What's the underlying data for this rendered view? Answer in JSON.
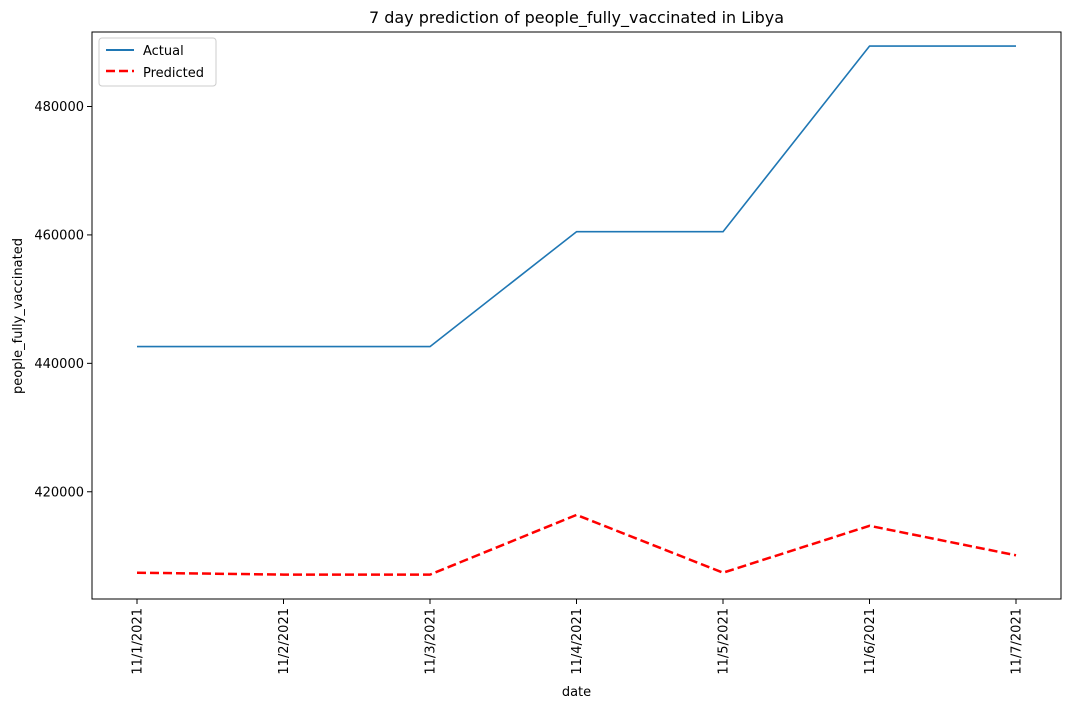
{
  "chart_data": {
    "type": "line",
    "title": "7 day prediction of people_fully_vaccinated in Libya",
    "xlabel": "date",
    "ylabel": "people_fully_vaccinated",
    "categories": [
      "11/1/2021",
      "11/2/2021",
      "11/3/2021",
      "11/4/2021",
      "11/5/2021",
      "11/6/2021",
      "11/7/2021"
    ],
    "y_ticks": [
      420000,
      440000,
      460000,
      480000
    ],
    "y_tick_labels": [
      "420000",
      "440000",
      "460000",
      "480000"
    ],
    "ylim": [
      403300,
      491600
    ],
    "grid": false,
    "legend_position": "top-left",
    "series": [
      {
        "name": "Actual",
        "color": "#1f77b4",
        "style": "solid",
        "values": [
          442600,
          442600,
          442600,
          460500,
          460500,
          489400,
          489400
        ]
      },
      {
        "name": "Predicted",
        "color": "#ff0000",
        "style": "dashed",
        "values": [
          407400,
          407100,
          407100,
          416400,
          407400,
          414700,
          410100
        ]
      }
    ]
  }
}
